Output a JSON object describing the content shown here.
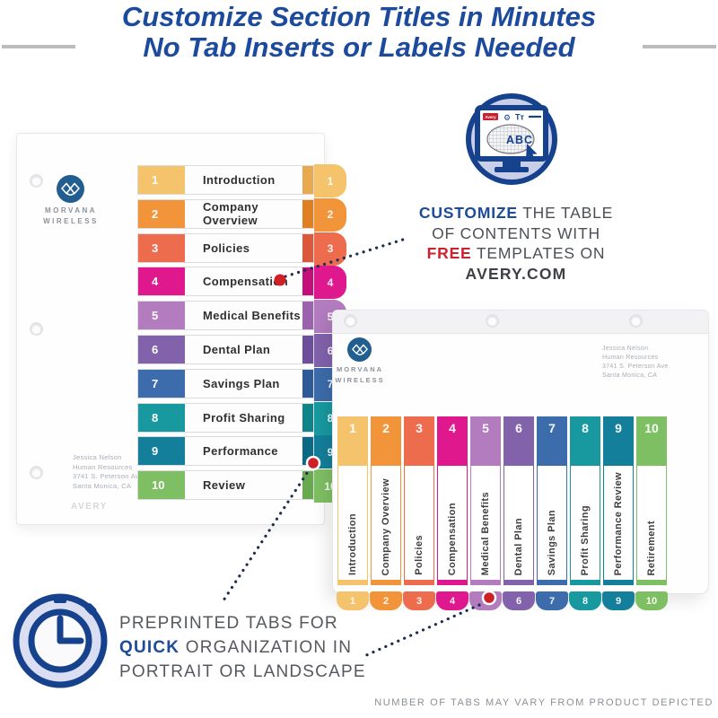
{
  "header": {
    "line1": "Customize Section Titles in Minutes",
    "line2": "No Tab Inserts or Labels Needed"
  },
  "brand": {
    "name1": "MORVANA",
    "name2": "WIRELESS"
  },
  "contact": {
    "lines": [
      "Jessica Nelson",
      "Human Resources",
      "3741 S. Peterson Ave.",
      "Santa Monica, CA"
    ]
  },
  "watermark": "AVERY",
  "sections": [
    {
      "num": "1",
      "portrait_label": "Introduction",
      "landscape_label": "Introduction",
      "color": "#F5C36B",
      "dark": "#E9A94E"
    },
    {
      "num": "2",
      "portrait_label": "Company Overview",
      "landscape_label": "Company Overview",
      "color": "#F2953A",
      "dark": "#DF7F22"
    },
    {
      "num": "3",
      "portrait_label": "Policies",
      "landscape_label": "Policies",
      "color": "#ED6C4E",
      "dark": "#DC583A"
    },
    {
      "num": "4",
      "portrait_label": "Compensation",
      "landscape_label": "Compensation",
      "color": "#E0188E",
      "dark": "#C40F7B"
    },
    {
      "num": "5",
      "portrait_label": "Medical Benefits",
      "landscape_label": "Medical Benefits",
      "color": "#B27CBE",
      "dark": "#9B63AD"
    },
    {
      "num": "6",
      "portrait_label": "Dental Plan",
      "landscape_label": "Dental Plan",
      "color": "#8262AB",
      "dark": "#6D4E9B"
    },
    {
      "num": "7",
      "portrait_label": "Savings Plan",
      "landscape_label": "Savings Plan",
      "color": "#3D6CAC",
      "dark": "#2E5A98"
    },
    {
      "num": "8",
      "portrait_label": "Profit Sharing",
      "landscape_label": "Profit Sharing",
      "color": "#1899A0",
      "dark": "#0E8388"
    },
    {
      "num": "9",
      "portrait_label": "Performance",
      "landscape_label": "Performance Review",
      "color": "#147F9B",
      "dark": "#0A6A85"
    },
    {
      "num": "10",
      "portrait_label": "Review",
      "landscape_label": "Retirement",
      "color": "#7FBF63",
      "dark": "#68A84E"
    }
  ],
  "customize_callout": {
    "line1_bold": "CUSTOMIZE",
    "line1_rest": " THE TABLE",
    "line2": "OF CONTENTS WITH",
    "line3_bold": "FREE",
    "line3_rest": " TEMPLATES ON",
    "line4": "AVERY.COM"
  },
  "preprinted_callout": {
    "line1": "PREPRINTED TABS FOR",
    "line2_bold": "QUICK",
    "line2_rest": " ORGANIZATION IN",
    "line3": "PORTRAIT OR LANDSCAPE"
  },
  "footnote": "NUMBER OF TABS MAY VARY FROM PRODUCT DEPICTED",
  "monitor_icon": {
    "chip": "Avery",
    "gear": "⚙",
    "tt": "Tт",
    "abc": "ABC"
  },
  "colors": {
    "title_blue": "#1C4A9C",
    "accent_red": "#CE2130",
    "icon_navy": "#16418C",
    "icon_fill": "#C9CFE9",
    "connector_navy": "#1E2D50"
  }
}
